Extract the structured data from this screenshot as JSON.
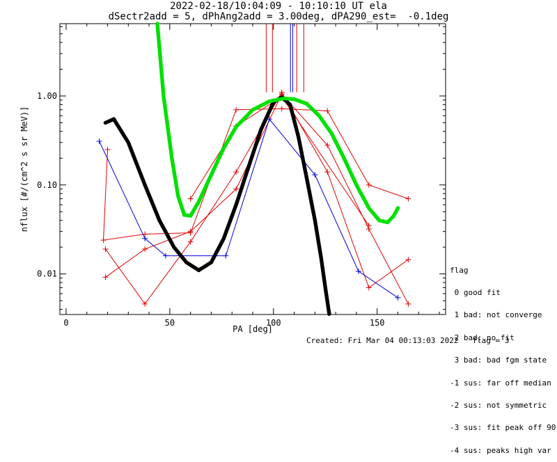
{
  "header": {
    "title_line1": "2022-02-18/10:04:09 - 10:10:10 UT ela",
    "title_line2": "dSectr2add = 5, dPhAng2add = 3.00deg, dPA290_est=  -0.1deg"
  },
  "legend": {
    "title": "flag",
    "items": [
      " 0 good fit",
      " 1 bad: not converge",
      " 2 bad: no fit",
      " 3 bad: bad fgm state",
      "-1 sus: far off median",
      "-2 sus: not symmetric",
      "-3 sus: fit peak off 90",
      "-4 sus: peaks high var"
    ]
  },
  "footer": {
    "created": "Created: Fri Mar 04 00:13:03 2022",
    "flag": "flag = 3"
  },
  "colors": {
    "red": "#e00000",
    "blue": "#0000e0",
    "green": "#00e000",
    "black": "#000000"
  },
  "chart_data": {
    "type": "line",
    "xlabel": "PA [deg]",
    "ylabel": "nflux [#/(cm^2 s sr MeV)]",
    "xlim": [
      -3,
      183
    ],
    "ylim": [
      0.0035,
      6.5
    ],
    "yscale": "log",
    "xticks": [
      0,
      50,
      100,
      150
    ],
    "xtick_labels": [
      "0",
      "50",
      "100",
      "150"
    ],
    "yticks": [
      0.01,
      0.1,
      1.0
    ],
    "ytick_labels": [
      "0.01",
      "0.10",
      "1.00"
    ],
    "vlines": [
      {
        "x": 96.5,
        "y_from": 1.1,
        "y_to": 6.5
      },
      {
        "x": 99.5,
        "y_from": 1.1,
        "y_to": 6.5
      },
      {
        "x": 108.2,
        "y_from": 1.1,
        "y_to": 6.5
      },
      {
        "x": 109.3,
        "y_from": 1.1,
        "y_to": 6.5
      },
      {
        "x": 111.2,
        "y_from": 1.1,
        "y_to": 6.5
      },
      {
        "x": 114.6,
        "y_from": 1.1,
        "y_to": 6.5
      }
    ],
    "series": [
      {
        "color": "#e00000",
        "marker": "+",
        "points": [
          [
            20,
            0.25
          ],
          [
            18,
            0.024
          ],
          [
            38,
            0.028
          ],
          [
            60,
            0.029
          ],
          [
            82,
            0.7
          ],
          [
            104,
            0.72
          ],
          [
            126,
            0.68
          ],
          [
            146,
            0.1
          ],
          [
            165,
            0.07
          ]
        ]
      },
      {
        "color": "#e00000",
        "marker": "+",
        "points": [
          [
            19,
            0.019
          ],
          [
            38,
            0.0046
          ],
          [
            60,
            0.023
          ],
          [
            82,
            0.14
          ],
          [
            104,
            1.1
          ],
          [
            126,
            0.14
          ],
          [
            146,
            0.007
          ],
          [
            165,
            0.0145
          ]
        ]
      },
      {
        "color": "#e00000",
        "marker": "+",
        "points": [
          [
            19,
            0.0092
          ],
          [
            38,
            0.019
          ],
          [
            60,
            0.03
          ],
          [
            82,
            0.09
          ],
          [
            104,
            1.05
          ],
          [
            126,
            0.28
          ],
          [
            146,
            0.032
          ],
          [
            165,
            0.0046
          ]
        ]
      },
      {
        "color": "#e00000",
        "marker": "+",
        "points": [
          [
            60,
            0.07
          ],
          [
            82,
            0.46
          ],
          [
            104,
            0.98
          ],
          [
            146,
            0.035
          ]
        ]
      },
      {
        "color": "#0000e0",
        "marker": "+",
        "points": [
          [
            16,
            0.31
          ],
          [
            38,
            0.025
          ],
          [
            48,
            0.016
          ],
          [
            77,
            0.016
          ],
          [
            98,
            0.55
          ],
          [
            120,
            0.13
          ],
          [
            141,
            0.0107
          ],
          [
            160,
            0.0054
          ]
        ]
      },
      {
        "color": "#000000",
        "marker": "dot",
        "points": [
          [
            19,
            0.5
          ],
          [
            23,
            0.55
          ],
          [
            30,
            0.3
          ],
          [
            38,
            0.1
          ],
          [
            45,
            0.04
          ],
          [
            52,
            0.02
          ],
          [
            58,
            0.0135
          ],
          [
            64,
            0.011
          ],
          [
            70,
            0.0135
          ],
          [
            76,
            0.025
          ],
          [
            82,
            0.06
          ],
          [
            88,
            0.16
          ],
          [
            94,
            0.42
          ],
          [
            100,
            0.85
          ],
          [
            104,
            0.97
          ],
          [
            108,
            0.8
          ],
          [
            112,
            0.35
          ],
          [
            116,
            0.12
          ],
          [
            120,
            0.04
          ],
          [
            123,
            0.015
          ],
          [
            125,
            0.007
          ],
          [
            127,
            0.0034
          ]
        ]
      },
      {
        "color": "#00e000",
        "marker": "dot",
        "points": [
          [
            44,
            6.5
          ],
          [
            47,
            1.0
          ],
          [
            51,
            0.2
          ],
          [
            54,
            0.075
          ],
          [
            57,
            0.046
          ],
          [
            60,
            0.045
          ],
          [
            64,
            0.065
          ],
          [
            70,
            0.13
          ],
          [
            76,
            0.26
          ],
          [
            82,
            0.45
          ],
          [
            90,
            0.7
          ],
          [
            98,
            0.87
          ],
          [
            105,
            0.94
          ],
          [
            110,
            0.92
          ],
          [
            116,
            0.82
          ],
          [
            122,
            0.6
          ],
          [
            128,
            0.38
          ],
          [
            134,
            0.2
          ],
          [
            140,
            0.1
          ],
          [
            146,
            0.055
          ],
          [
            151,
            0.04
          ],
          [
            155,
            0.038
          ],
          [
            158,
            0.045
          ],
          [
            160,
            0.055
          ]
        ]
      }
    ]
  }
}
